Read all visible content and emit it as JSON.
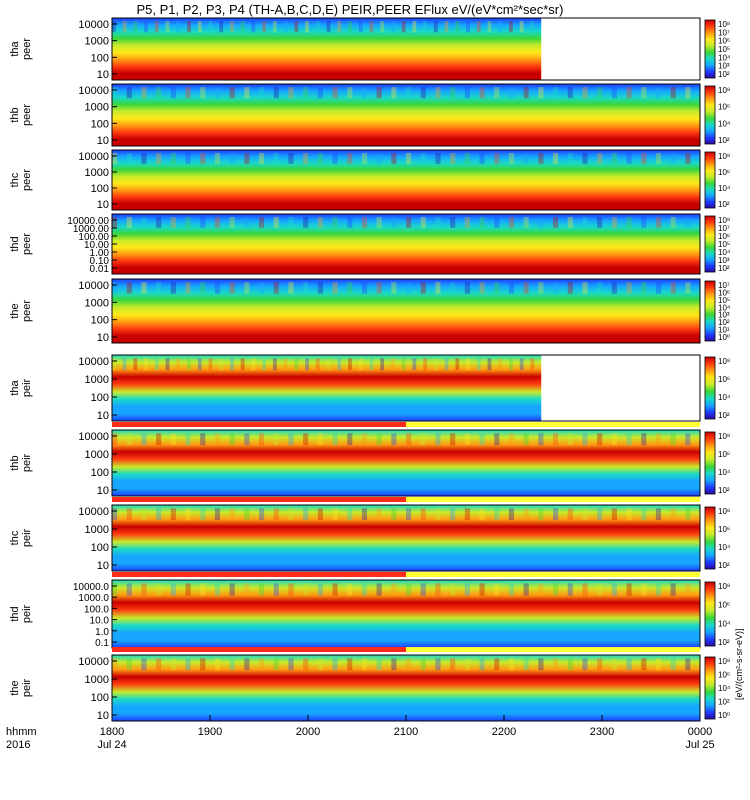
{
  "title": "P5, P1, P2, P3, P4 (TH-A,B,C,D,E) PEIR,PEER EFlux eV/(eV*cm²*sec*sr)",
  "colors": {
    "spectrum": [
      "#2b0aa6",
      "#1f3cff",
      "#16a5ff",
      "#19d9c7",
      "#39d63a",
      "#c8ea2a",
      "#ffe81a",
      "#ff9b12",
      "#ff3b0f",
      "#c80000"
    ],
    "flag_red": "#ff2b1a",
    "flag_yellow": "#ffff33",
    "flag_black": "#000000"
  },
  "chart_data": {
    "type": "heatmap",
    "title": "P5, P1, P2, P3, P4 (TH-A,B,C,D,E) PEIR,PEER EFlux eV/(eV*cm²*sec*sr)",
    "x_axis": {
      "tick_labels": [
        "1800",
        "1900",
        "2000",
        "2100",
        "2200",
        "2300",
        "0000"
      ],
      "date_labels": [
        "Jul 24",
        "Jul 25"
      ],
      "row_labels": [
        "hhmm",
        "2016"
      ]
    },
    "colorbar_label": "[eV/(cm²-s-sr-eV)]",
    "panels": [
      {
        "probe": "tha",
        "species": "peer",
        "ylabel": "tha\npeer",
        "yticks": [
          "10000",
          "1000",
          "100",
          "10"
        ],
        "cbar_ticks": [
          "10⁸",
          "10⁷",
          "10⁶",
          "10⁵",
          "10⁴",
          "10³",
          "10²"
        ],
        "data_end": "2250"
      },
      {
        "probe": "thb",
        "species": "peer",
        "ylabel": "thb\npeer",
        "yticks": [
          "10000",
          "1000",
          "100",
          "10"
        ],
        "cbar_ticks": [
          "10⁸",
          "10⁶",
          "10⁴",
          "10²"
        ]
      },
      {
        "probe": "thc",
        "species": "peer",
        "ylabel": "thc\npeer",
        "yticks": [
          "10000",
          "1000",
          "100",
          "10"
        ],
        "cbar_ticks": [
          "10⁸",
          "10⁶",
          "10⁴",
          "10²"
        ]
      },
      {
        "probe": "thd",
        "species": "peer",
        "ylabel": "thd\npeer",
        "yticks": [
          "10000.00",
          "1000.00",
          "100.00",
          "10.00",
          "1.00",
          "0.10",
          "0.01"
        ],
        "cbar_ticks": [
          "10⁸",
          "10⁷",
          "10⁶",
          "10⁵",
          "10⁴",
          "10³",
          "10²"
        ]
      },
      {
        "probe": "the",
        "species": "peer",
        "ylabel": "the\npeer",
        "yticks": [
          "10000",
          "1000",
          "100",
          "10"
        ],
        "cbar_ticks": [
          "10⁷",
          "10⁶",
          "10⁵",
          "10⁴",
          "10³",
          "10²",
          "10¹",
          "10⁰"
        ]
      },
      {
        "probe": "tha",
        "species": "peir",
        "ylabel": "tha\npeir",
        "yticks": [
          "10000",
          "1000",
          "100",
          "10"
        ],
        "cbar_ticks": [
          "10⁸",
          "10⁶",
          "10⁴",
          "10²"
        ],
        "data_end": "2250"
      },
      {
        "probe": "thb",
        "species": "peir",
        "ylabel": "thb\npeir",
        "yticks": [
          "10000",
          "1000",
          "100",
          "10"
        ],
        "cbar_ticks": [
          "10⁸",
          "10⁶",
          "10⁴",
          "10²"
        ]
      },
      {
        "probe": "thc",
        "species": "peir",
        "ylabel": "thc\npeir",
        "yticks": [
          "10000",
          "1000",
          "100",
          "10"
        ],
        "cbar_ticks": [
          "10⁸",
          "10⁶",
          "10⁴",
          "10²"
        ]
      },
      {
        "probe": "thd",
        "species": "peir",
        "ylabel": "thd\npeir",
        "yticks": [
          "10000.0",
          "1000.0",
          "100.0",
          "10.0",
          "1.0",
          "0.1"
        ],
        "cbar_ticks": [
          "10⁸",
          "10⁶",
          "10⁴",
          "10²"
        ]
      },
      {
        "probe": "the",
        "species": "peir",
        "ylabel": "the\npeir",
        "yticks": [
          "10000",
          "1000",
          "100",
          "10"
        ],
        "cbar_ticks": [
          "10⁸",
          "10⁶",
          "10⁴",
          "10²",
          "10⁰"
        ]
      }
    ]
  }
}
